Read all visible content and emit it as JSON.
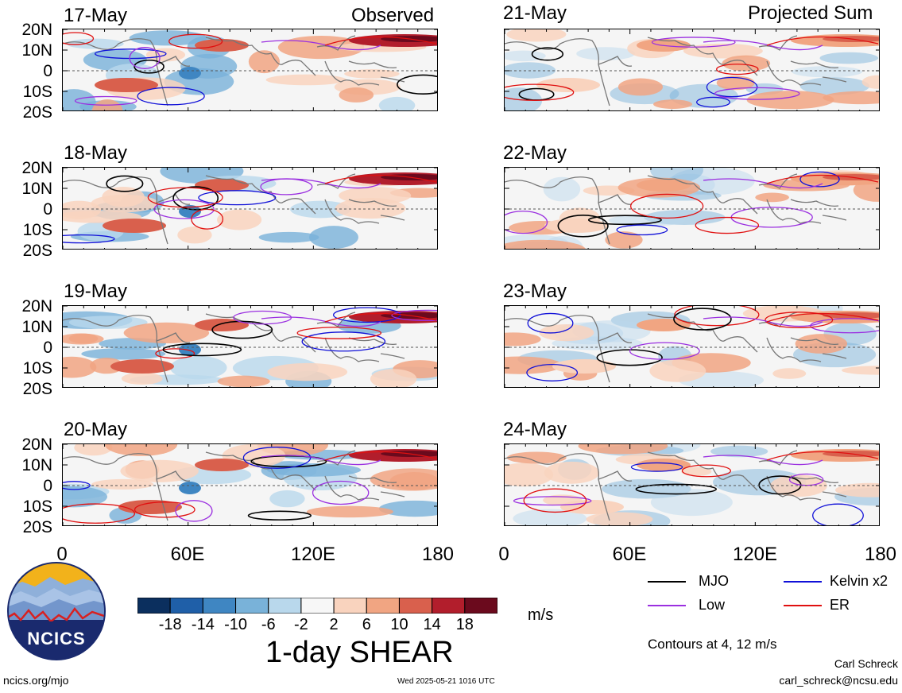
{
  "headers": {
    "left": "Observed",
    "right": "Projected Sum"
  },
  "panels": {
    "left": [
      {
        "date": "17-May"
      },
      {
        "date": "18-May"
      },
      {
        "date": "19-May"
      },
      {
        "date": "20-May"
      }
    ],
    "right": [
      {
        "date": "21-May"
      },
      {
        "date": "22-May"
      },
      {
        "date": "23-May"
      },
      {
        "date": "24-May"
      }
    ]
  },
  "lat_labels": [
    "20N",
    "10N",
    "0",
    "10S",
    "20S"
  ],
  "lon_labels": [
    "0",
    "60E",
    "120E",
    "180"
  ],
  "colorbar": {
    "colors": [
      "#0b2f5e",
      "#1f5fa8",
      "#3f86c2",
      "#79b2d9",
      "#b9d8ec",
      "#f7f7f7",
      "#f9d3be",
      "#f1a582",
      "#d9604d",
      "#b21e2c",
      "#6b0a1d"
    ],
    "labels": [
      "-18",
      "-14",
      "-10",
      "-6",
      "-2",
      "2",
      "6",
      "10",
      "14",
      "18"
    ],
    "units": "m/s"
  },
  "title": "1-day SHEAR",
  "legend": {
    "items": [
      {
        "label": "MJO",
        "color": "#000000"
      },
      {
        "label": "Kelvin x2",
        "color": "#1010d8"
      },
      {
        "label": "Low",
        "color": "#9b30e0"
      },
      {
        "label": "ER",
        "color": "#e01010"
      }
    ],
    "contours_note": "Contours at 4, 12 m/s"
  },
  "footer": {
    "site": "ncics.org/mjo",
    "timestamp": "Wed 2025-05-21 1016 UTC",
    "author": "Carl Schreck",
    "email": "carl_schreck@ncsu.edu"
  },
  "logo": {
    "text": "NCICS"
  }
}
